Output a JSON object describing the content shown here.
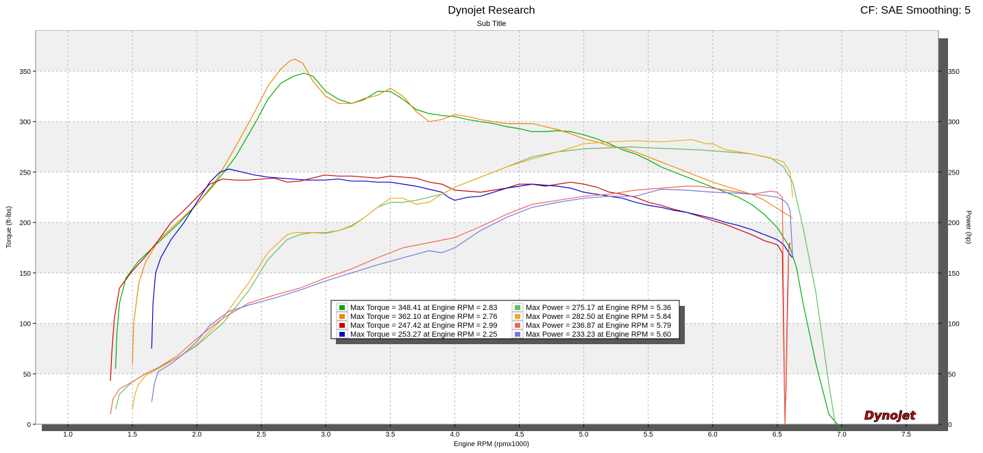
{
  "header": {
    "title": "Dynojet Research",
    "subtitle": "Sub Title",
    "corner_text": "CF: SAE Smoothing: 5"
  },
  "logo_text": "Dynojet",
  "chart_data": {
    "type": "line",
    "xlabel": "Engine RPM (rpmx1000)",
    "ylabel_left": "Torque (ft-lbs)",
    "ylabel_right": "Power (hp)",
    "xlim": [
      0.75,
      7.75
    ],
    "ylim": [
      0,
      390
    ],
    "xticks": [
      1.0,
      1.5,
      2.0,
      2.5,
      3.0,
      3.5,
      4.0,
      4.5,
      5.0,
      5.5,
      6.0,
      6.5,
      7.0,
      7.5
    ],
    "xtick_labels": [
      "1.0",
      "1.5",
      "2.0",
      "2.5",
      "3.0",
      "3.5",
      "4.0",
      "4.5",
      "5.0",
      "5.5",
      "6.0",
      "6.5",
      "7.0",
      "7.5"
    ],
    "yticks": [
      0,
      50,
      100,
      150,
      200,
      250,
      300,
      350
    ],
    "ytick_labels": [
      "0",
      "50",
      "100",
      "150",
      "200",
      "250",
      "300",
      "350"
    ],
    "grid": true,
    "legend_position": "center-bottom",
    "legend": [
      {
        "label": "Max Torque = 348.41 at Engine RPM = 2.83",
        "color": "#00aa00"
      },
      {
        "label": "Max Torque = 362.10 at Engine RPM = 2.76",
        "color": "#ee8800"
      },
      {
        "label": "Max Torque = 247.42 at Engine RPM = 2.99",
        "color": "#cc0000"
      },
      {
        "label": "Max Torque = 253.27 at Engine RPM = 2.25",
        "color": "#0000cc"
      },
      {
        "label": "Max Power = 275.17 at Engine RPM = 5.36",
        "color": "#66bb66"
      },
      {
        "label": "Max Power = 282.50 at Engine RPM = 5.84",
        "color": "#eeaa22"
      },
      {
        "label": "Max Power = 236.87 at Engine RPM = 5.79",
        "color": "#ee6655"
      },
      {
        "label": "Max Power = 233.23 at Engine RPM = 5.60",
        "color": "#7777dd"
      }
    ],
    "series": [
      {
        "kind": "torque",
        "color": "#00aa00",
        "x": [
          1.37,
          1.38,
          1.4,
          1.45,
          1.55,
          1.7,
          1.85,
          2.0,
          2.15,
          2.3,
          2.45,
          2.55,
          2.65,
          2.75,
          2.83,
          2.9,
          3.0,
          3.1,
          3.2,
          3.3,
          3.4,
          3.5,
          3.6,
          3.7,
          3.8,
          3.9,
          4.0,
          4.1,
          4.2,
          4.3,
          4.4,
          4.5,
          4.6,
          4.7,
          4.8,
          4.9,
          5.0,
          5.1,
          5.2,
          5.3,
          5.4,
          5.5,
          5.6,
          5.7,
          5.8,
          5.9,
          6.0,
          6.1,
          6.2,
          6.3,
          6.4,
          6.5,
          6.6,
          6.65,
          6.7,
          6.8,
          6.9,
          7.0
        ],
        "y": [
          55,
          90,
          120,
          145,
          162,
          180,
          198,
          218,
          240,
          265,
          298,
          322,
          338,
          345,
          348,
          345,
          330,
          322,
          318,
          322,
          330,
          330,
          322,
          312,
          308,
          306,
          305,
          302,
          300,
          298,
          295,
          293,
          290,
          290,
          291,
          290,
          287,
          283,
          278,
          272,
          268,
          262,
          255,
          250,
          245,
          240,
          235,
          230,
          225,
          218,
          208,
          195,
          175,
          155,
          120,
          60,
          10,
          -5
        ]
      },
      {
        "kind": "torque",
        "color": "#ee8800",
        "x": [
          1.5,
          1.51,
          1.55,
          1.6,
          1.7,
          1.85,
          2.0,
          2.15,
          2.3,
          2.45,
          2.55,
          2.65,
          2.72,
          2.76,
          2.82,
          2.9,
          3.0,
          3.1,
          3.2,
          3.3,
          3.4,
          3.5,
          3.6,
          3.7,
          3.8,
          3.9,
          4.0,
          4.1,
          4.2,
          4.3,
          4.4,
          4.5,
          4.6,
          4.7,
          4.8,
          4.9,
          5.0,
          5.1,
          5.2,
          5.3,
          5.4,
          5.5,
          5.6,
          5.7,
          5.8,
          5.9,
          6.0,
          6.1,
          6.2,
          6.3,
          6.4,
          6.5,
          6.55,
          6.6,
          6.62
        ],
        "y": [
          60,
          100,
          140,
          160,
          182,
          200,
          218,
          242,
          275,
          310,
          335,
          352,
          360,
          362,
          358,
          340,
          325,
          318,
          318,
          323,
          326,
          333,
          325,
          310,
          300,
          302,
          307,
          305,
          302,
          300,
          298,
          298,
          298,
          295,
          292,
          288,
          283,
          280,
          276,
          274,
          270,
          265,
          260,
          255,
          250,
          245,
          240,
          236,
          232,
          228,
          222,
          214,
          210,
          206,
          204
        ]
      },
      {
        "kind": "torque",
        "color": "#cc0000",
        "x": [
          1.33,
          1.34,
          1.36,
          1.4,
          1.5,
          1.6,
          1.7,
          1.8,
          1.9,
          2.0,
          2.1,
          2.2,
          2.3,
          2.4,
          2.5,
          2.6,
          2.7,
          2.8,
          2.99,
          3.1,
          3.2,
          3.3,
          3.4,
          3.5,
          3.6,
          3.7,
          3.8,
          3.9,
          4.0,
          4.1,
          4.2,
          4.3,
          4.4,
          4.5,
          4.6,
          4.7,
          4.8,
          4.9,
          5.0,
          5.1,
          5.2,
          5.3,
          5.4,
          5.5,
          5.6,
          5.7,
          5.8,
          5.9,
          6.0,
          6.1,
          6.2,
          6.3,
          6.4,
          6.5,
          6.54,
          6.56,
          6.57,
          6.58,
          6.59,
          6.6
        ],
        "y": [
          43,
          70,
          105,
          135,
          152,
          166,
          182,
          200,
          212,
          225,
          238,
          243,
          242,
          242,
          243,
          244,
          240,
          241,
          247,
          246,
          246,
          245,
          244,
          246,
          245,
          244,
          240,
          238,
          232,
          231,
          230,
          232,
          234,
          238,
          238,
          236,
          238,
          240,
          238,
          235,
          230,
          228,
          225,
          220,
          217,
          213,
          210,
          206,
          202,
          198,
          193,
          188,
          182,
          178,
          170,
          0,
          50,
          130,
          175,
          180
        ]
      },
      {
        "kind": "torque",
        "color": "#0000cc",
        "x": [
          1.65,
          1.66,
          1.68,
          1.72,
          1.8,
          1.9,
          2.0,
          2.1,
          2.18,
          2.25,
          2.35,
          2.45,
          2.55,
          2.65,
          2.75,
          2.85,
          2.99,
          3.1,
          3.2,
          3.3,
          3.4,
          3.5,
          3.6,
          3.7,
          3.8,
          3.9,
          3.95,
          4.0,
          4.1,
          4.2,
          4.3,
          4.4,
          4.5,
          4.6,
          4.7,
          4.8,
          4.9,
          5.0,
          5.1,
          5.2,
          5.3,
          5.4,
          5.5,
          5.6,
          5.7,
          5.8,
          5.9,
          6.0,
          6.1,
          6.2,
          6.3,
          6.4,
          6.5,
          6.55,
          6.58,
          6.6,
          6.62
        ],
        "y": [
          75,
          120,
          150,
          165,
          183,
          200,
          220,
          240,
          250,
          253,
          250,
          247,
          245,
          244,
          243,
          242,
          242,
          243,
          241,
          241,
          240,
          240,
          238,
          236,
          233,
          230,
          225,
          222,
          225,
          226,
          230,
          234,
          236,
          238,
          237,
          236,
          234,
          230,
          228,
          226,
          224,
          220,
          217,
          215,
          212,
          210,
          207,
          204,
          200,
          197,
          193,
          188,
          183,
          178,
          172,
          168,
          165
        ]
      },
      {
        "kind": "power",
        "color": "#66bb66",
        "x": [
          1.37,
          1.4,
          1.5,
          1.6,
          1.7,
          1.85,
          2.0,
          2.2,
          2.4,
          2.55,
          2.7,
          2.8,
          2.9,
          3.0,
          3.1,
          3.2,
          3.3,
          3.4,
          3.5,
          3.6,
          3.7,
          3.8,
          3.9,
          4.0,
          4.2,
          4.4,
          4.6,
          4.8,
          5.0,
          5.2,
          5.36,
          5.5,
          5.7,
          5.9,
          6.1,
          6.3,
          6.45,
          6.55,
          6.62,
          6.7,
          6.8,
          6.9,
          6.95
        ],
        "y": [
          15,
          30,
          42,
          50,
          56,
          66,
          78,
          100,
          132,
          163,
          183,
          188,
          190,
          190,
          192,
          197,
          205,
          215,
          220,
          220,
          222,
          225,
          228,
          235,
          245,
          255,
          265,
          270,
          273,
          274,
          275,
          274,
          273,
          272,
          270,
          268,
          264,
          255,
          240,
          195,
          130,
          40,
          0
        ]
      },
      {
        "kind": "power",
        "color": "#eeaa22",
        "x": [
          1.5,
          1.52,
          1.55,
          1.6,
          1.7,
          1.85,
          2.0,
          2.2,
          2.4,
          2.55,
          2.7,
          2.76,
          2.9,
          3.0,
          3.1,
          3.2,
          3.3,
          3.4,
          3.5,
          3.6,
          3.7,
          3.8,
          3.9,
          4.0,
          4.2,
          4.4,
          4.6,
          4.8,
          5.0,
          5.2,
          5.4,
          5.6,
          5.84,
          5.95,
          6.0,
          6.1,
          6.2,
          6.3,
          6.4,
          6.5,
          6.55,
          6.6,
          6.62
        ],
        "y": [
          15,
          30,
          40,
          48,
          55,
          66,
          79,
          105,
          140,
          170,
          188,
          190,
          190,
          189,
          192,
          196,
          205,
          215,
          224,
          224,
          218,
          220,
          228,
          235,
          245,
          255,
          263,
          270,
          278,
          280,
          281,
          280,
          282,
          278,
          278,
          272,
          270,
          268,
          265,
          262,
          260,
          250,
          225
        ]
      },
      {
        "kind": "power",
        "color": "#ee6655",
        "x": [
          1.33,
          1.35,
          1.4,
          1.5,
          1.6,
          1.7,
          1.85,
          2.0,
          2.2,
          2.4,
          2.6,
          2.8,
          3.0,
          3.2,
          3.4,
          3.6,
          3.8,
          4.0,
          4.2,
          4.4,
          4.6,
          4.8,
          5.0,
          5.2,
          5.4,
          5.6,
          5.79,
          5.9,
          6.0,
          6.1,
          6.2,
          6.3,
          6.4,
          6.45,
          6.5,
          6.54,
          6.56,
          6.57,
          6.58,
          6.59
        ],
        "y": [
          10,
          25,
          35,
          42,
          50,
          56,
          68,
          85,
          105,
          120,
          128,
          135,
          145,
          154,
          165,
          175,
          180,
          185,
          196,
          208,
          218,
          222,
          226,
          228,
          232,
          234,
          236,
          236,
          234,
          232,
          230,
          228,
          230,
          231,
          230,
          225,
          0,
          40,
          110,
          175
        ]
      },
      {
        "kind": "power",
        "color": "#7777dd",
        "x": [
          1.65,
          1.67,
          1.7,
          1.8,
          1.9,
          2.0,
          2.1,
          2.25,
          2.4,
          2.6,
          2.8,
          3.0,
          3.2,
          3.4,
          3.6,
          3.8,
          3.9,
          4.0,
          4.2,
          4.4,
          4.6,
          4.8,
          5.0,
          5.2,
          5.4,
          5.6,
          5.8,
          6.0,
          6.2,
          6.4,
          6.5,
          6.55,
          6.58,
          6.6,
          6.62
        ],
        "y": [
          22,
          40,
          52,
          60,
          70,
          82,
          98,
          112,
          118,
          125,
          133,
          142,
          150,
          158,
          165,
          172,
          170,
          175,
          192,
          205,
          215,
          220,
          224,
          226,
          226,
          233,
          232,
          230,
          229,
          227,
          225,
          222,
          218,
          212,
          165
        ]
      }
    ]
  }
}
